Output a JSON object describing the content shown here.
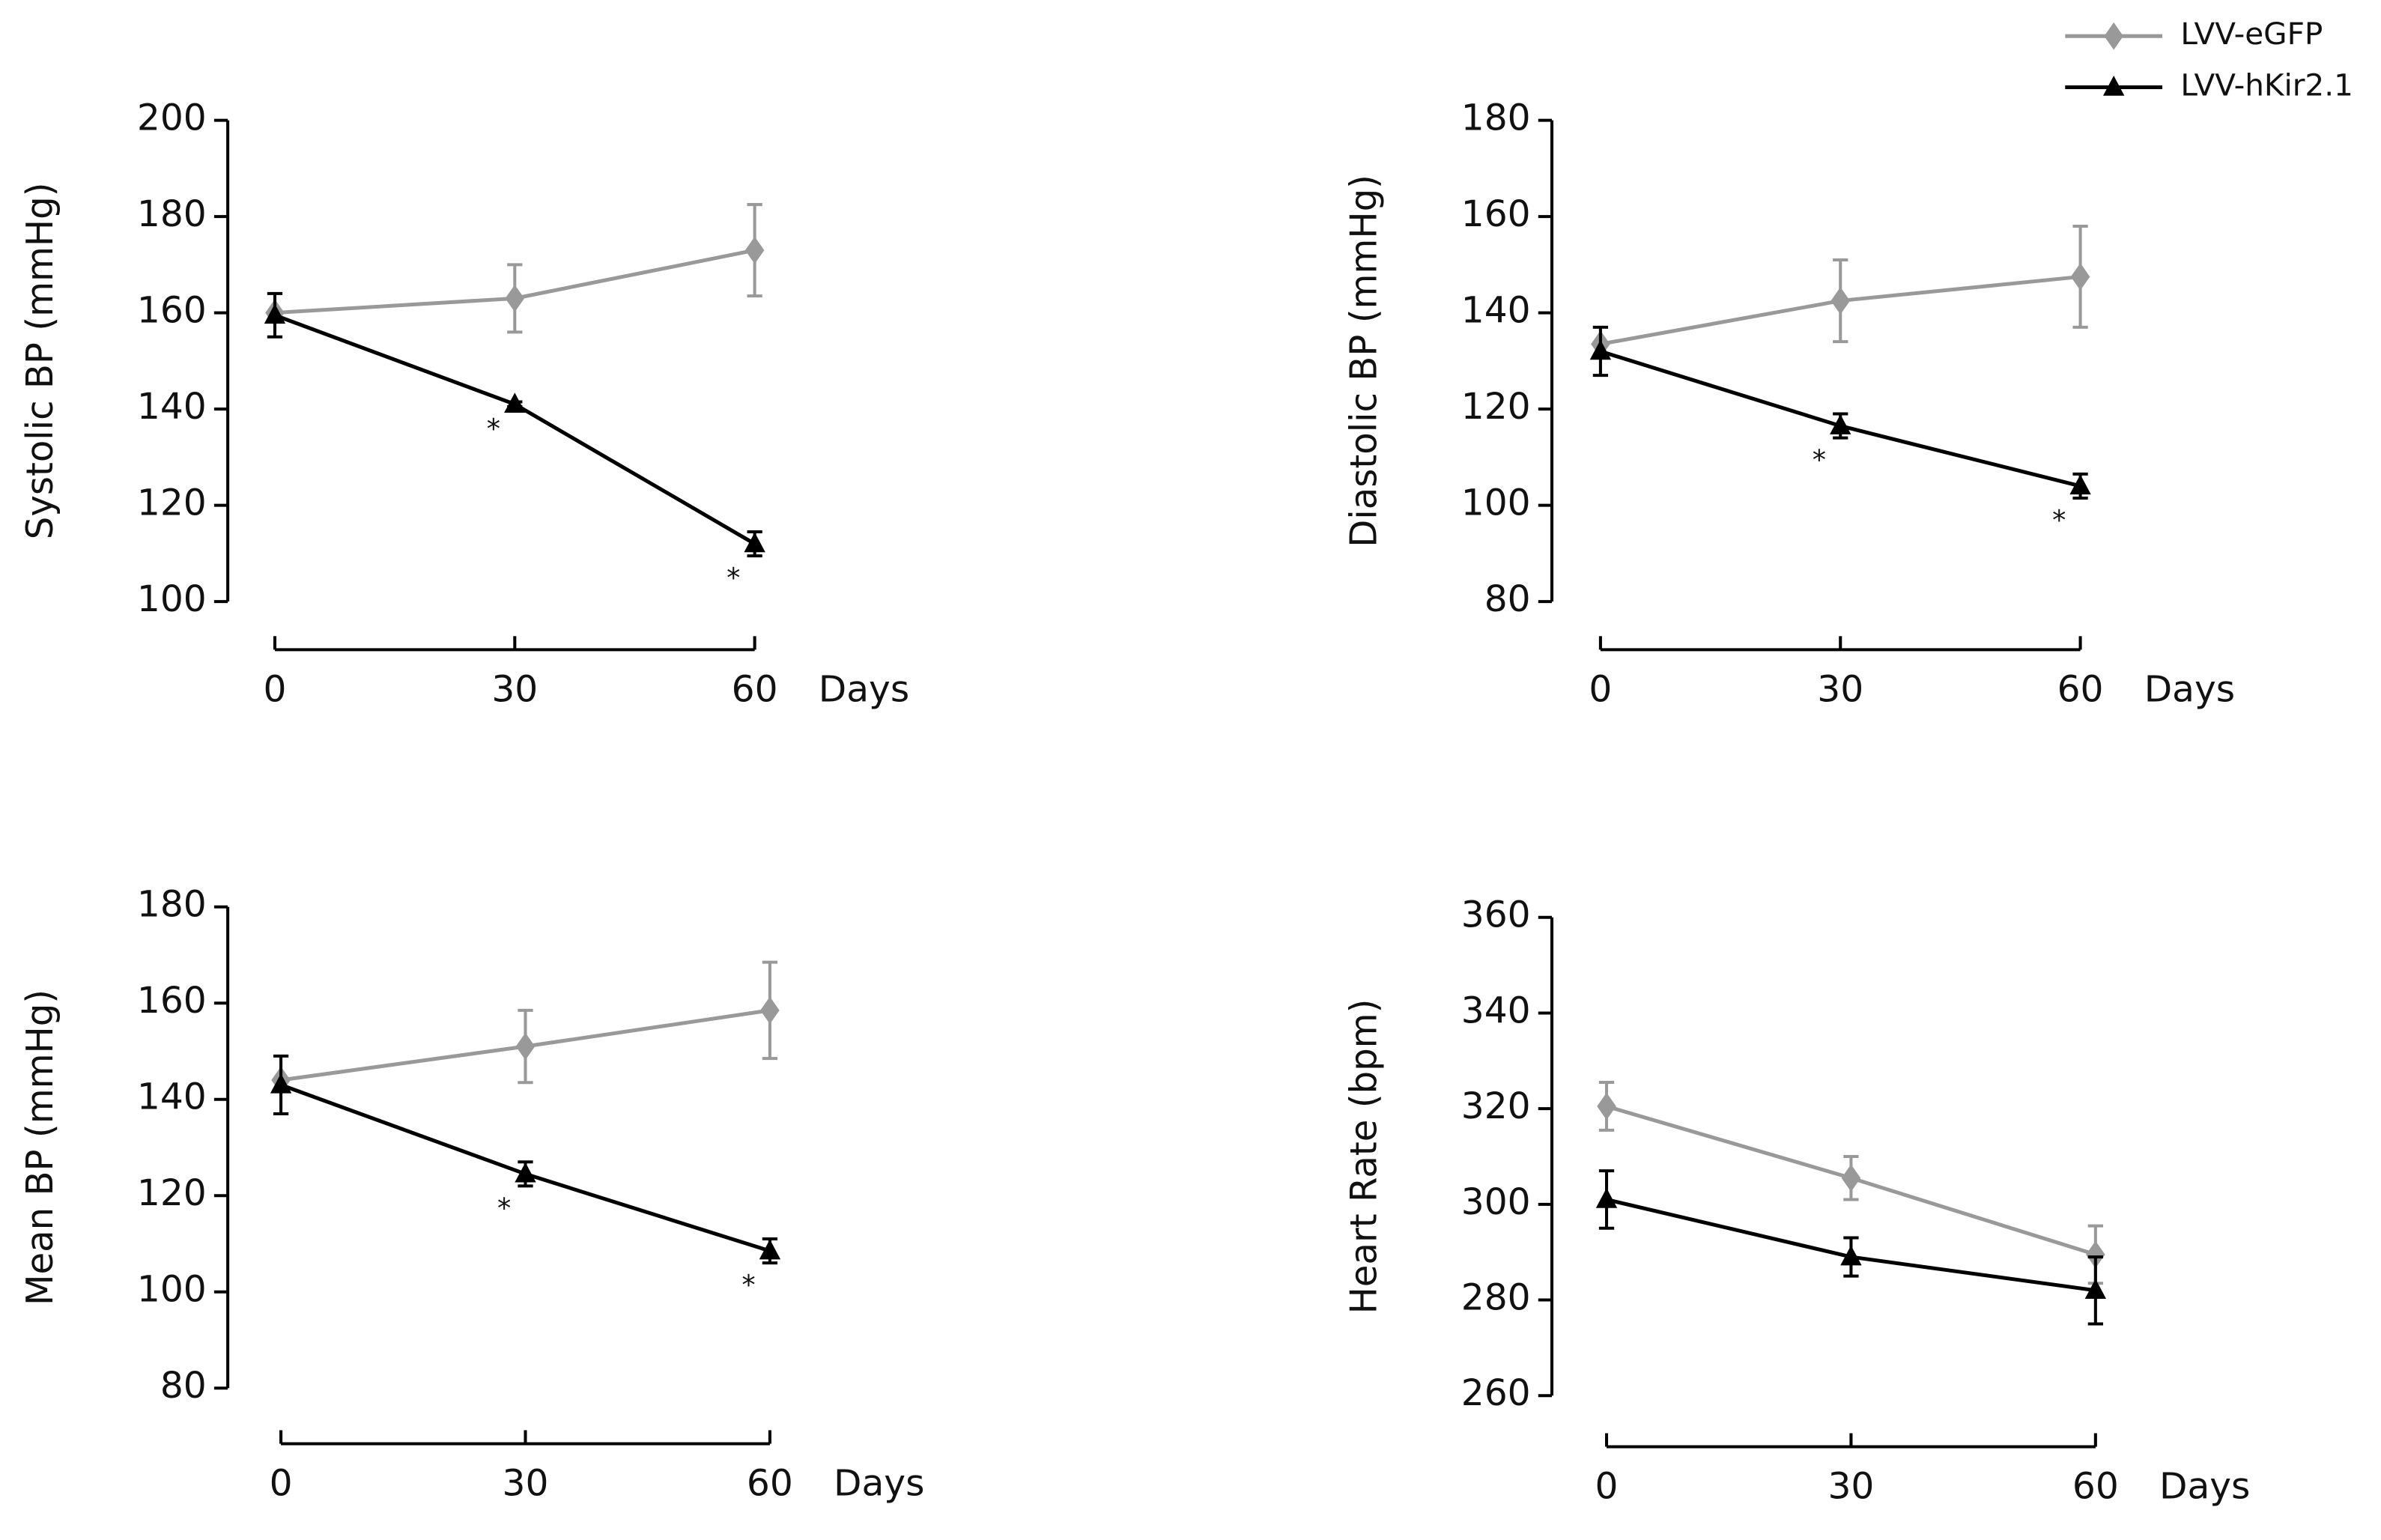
{
  "chart_data": [
    {
      "type": "line",
      "ylabel": "Systolic BP (mmHg)",
      "xlabel": "Days",
      "x": [
        0,
        30,
        60
      ],
      "xlim": [
        0,
        60
      ],
      "xticks": [
        0,
        30,
        60
      ],
      "ylim": [
        100,
        200
      ],
      "yticks": [
        100,
        120,
        140,
        160,
        180,
        200
      ],
      "legend": "upper right",
      "series": [
        {
          "name": "LVV-eGFP",
          "color": "#999999",
          "marker": "diamond",
          "values": [
            160,
            163,
            173
          ],
          "errors": [
            0,
            7,
            9.5
          ]
        },
        {
          "name": "LVV-hKir2.1",
          "color": "#000000",
          "marker": "triangle",
          "values": [
            159.5,
            141,
            112
          ],
          "errors": [
            4.5,
            0.5,
            2.5
          ],
          "significance": [
            null,
            "*",
            "*"
          ]
        }
      ]
    },
    {
      "type": "line",
      "ylabel": "Diastolic BP (mmHg)",
      "xlabel": "Days",
      "x": [
        0,
        30,
        60
      ],
      "xlim": [
        0,
        60
      ],
      "xticks": [
        0,
        30,
        60
      ],
      "ylim": [
        80,
        180
      ],
      "yticks": [
        80,
        100,
        120,
        140,
        160,
        180
      ],
      "series": [
        {
          "color": "#999999",
          "marker": "diamond",
          "values": [
            133.5,
            142.5,
            147.5
          ],
          "errors": [
            0,
            8.5,
            10.5
          ]
        },
        {
          "color": "#000000",
          "marker": "triangle",
          "values": [
            132,
            116.5,
            104
          ],
          "errors": [
            5,
            2.5,
            2.5
          ],
          "significance": [
            null,
            "*",
            "*"
          ]
        }
      ]
    },
    {
      "type": "line",
      "ylabel": "Mean BP (mmHg)",
      "xlabel": "Days",
      "x": [
        0,
        30,
        60
      ],
      "xlim": [
        0,
        60
      ],
      "xticks": [
        0,
        30,
        60
      ],
      "ylim": [
        80,
        180
      ],
      "yticks": [
        80,
        100,
        120,
        140,
        160,
        180
      ],
      "series": [
        {
          "color": "#999999",
          "marker": "diamond",
          "values": [
            144,
            151,
            158.5
          ],
          "errors": [
            0,
            7.5,
            10
          ]
        },
        {
          "color": "#000000",
          "marker": "triangle",
          "values": [
            143,
            124.5,
            108.5
          ],
          "errors": [
            6,
            2.5,
            2.5
          ],
          "significance": [
            null,
            "*",
            "*"
          ]
        }
      ]
    },
    {
      "type": "line",
      "ylabel": "Heart Rate (bpm)",
      "xlabel": "Days",
      "x": [
        0,
        30,
        60
      ],
      "xlim": [
        0,
        60
      ],
      "xticks": [
        0,
        30,
        60
      ],
      "ylim": [
        260,
        360
      ],
      "yticks": [
        260,
        280,
        300,
        320,
        340,
        360
      ],
      "series": [
        {
          "color": "#999999",
          "marker": "diamond",
          "values": [
            320.5,
            305.5,
            289.5
          ],
          "errors": [
            5,
            4.5,
            6
          ]
        },
        {
          "color": "#000000",
          "marker": "triangle",
          "values": [
            301,
            289,
            282
          ],
          "errors": [
            6,
            4,
            7
          ]
        }
      ]
    }
  ]
}
